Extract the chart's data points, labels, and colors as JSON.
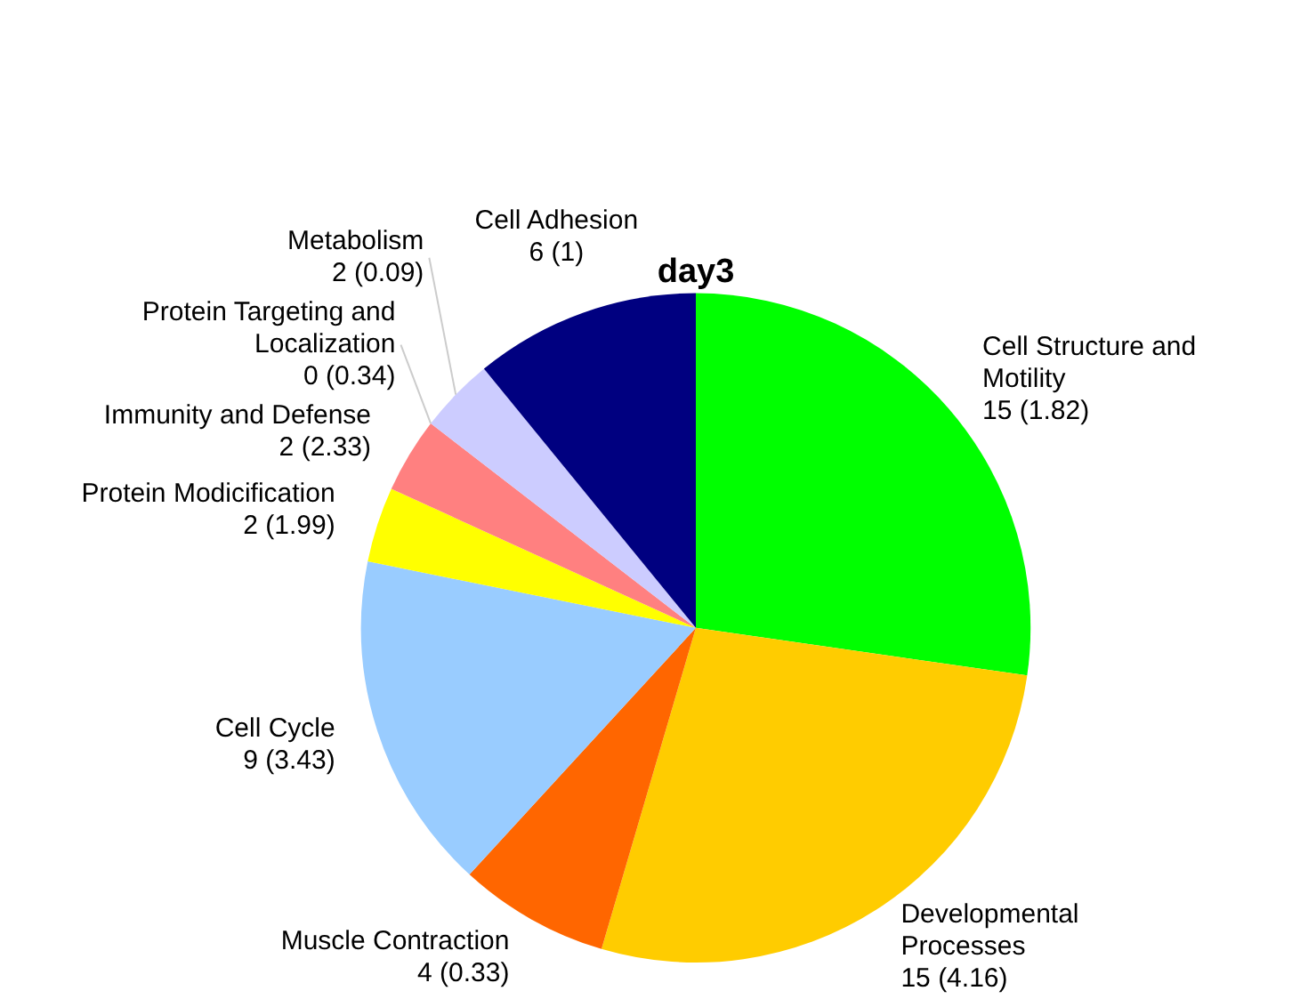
{
  "chart_data": {
    "type": "pie",
    "title": "day3",
    "categories": [
      "Cell Structure and Motility",
      "Developmental Processes",
      "Muscle Contraction",
      "Cell Cycle",
      "Protein Modicification",
      "Immunity and Defense",
      "Protein Targeting and Localization",
      "Metabolism",
      "Cell Adhesion"
    ],
    "values": [
      15,
      15,
      4,
      9,
      2,
      2,
      0,
      2,
      6
    ],
    "value_labels": [
      "15 (1.82)",
      "15 (4.16)",
      "4 (0.33)",
      "9 (3.43)",
      "2 (1.99)",
      "2 (2.33)",
      "0 (0.34)",
      "2 (0.09)",
      "6 (1)"
    ],
    "colors": [
      "#00ff00",
      "#ffcc00",
      "#ff6600",
      "#99ccff",
      "#ffff00",
      "#ff8080",
      "#99ff99",
      "#ccccff",
      "#000080"
    ],
    "legend": false
  }
}
